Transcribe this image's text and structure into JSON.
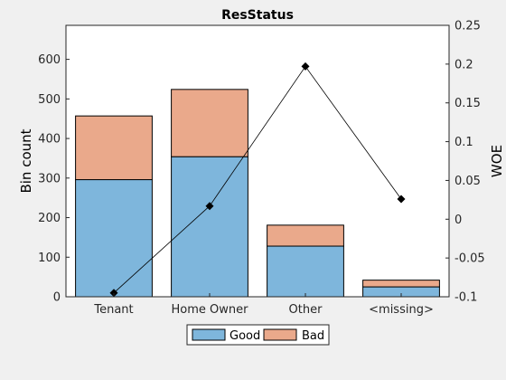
{
  "chart_data": {
    "type": "bar",
    "title": "ResStatus",
    "xlabel": "",
    "ylabel": "Bin count",
    "y2label": "WOE",
    "categories": [
      "Tenant",
      "Home Owner",
      "Other",
      "<missing>"
    ],
    "stacked": true,
    "series": [
      {
        "name": "Good",
        "values": [
          296,
          354,
          128,
          25
        ],
        "color": "#7eb6dc"
      },
      {
        "name": "Bad",
        "values": [
          161,
          170,
          53,
          17
        ],
        "color": "#eaa98b"
      }
    ],
    "woe": {
      "values": [
        -0.095,
        0.017,
        0.197,
        0.026
      ],
      "color": "#000000"
    },
    "ylim": [
      0,
      686
    ],
    "y2lim": [
      -0.1,
      0.25
    ],
    "yticks": [
      "0",
      "100",
      "200",
      "300",
      "400",
      "500",
      "600"
    ],
    "y2ticks": [
      "-0.1",
      "-0.05",
      "0",
      "0.05",
      "0.1",
      "0.15",
      "0.2",
      "0.25"
    ],
    "y2tick_values": [
      -0.1,
      -0.05,
      0,
      0.05,
      0.1,
      0.15,
      0.2,
      0.25
    ],
    "grid": false,
    "legend_position": "bottom-center"
  }
}
